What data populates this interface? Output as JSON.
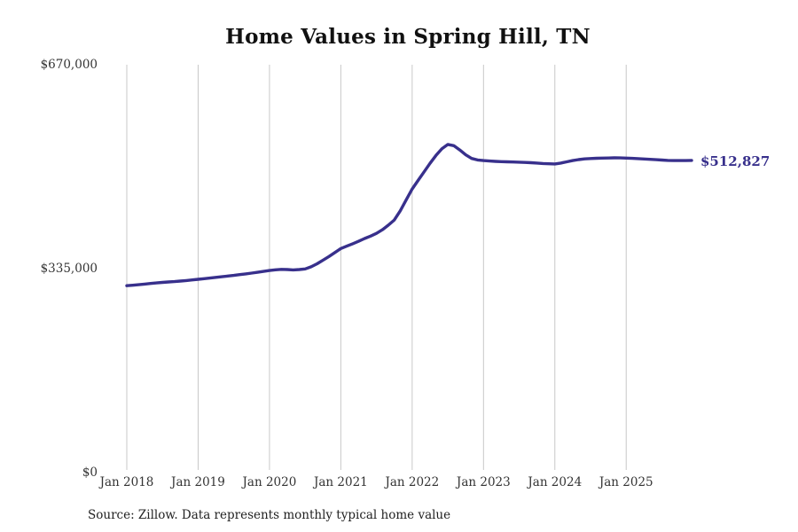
{
  "page": {
    "background": "#ffffff"
  },
  "chart_data": {
    "type": "line",
    "title": "Home Values in Spring Hill, TN",
    "source_note": "Source: Zillow. Data represents monthly typical home value",
    "series_name": "Monthly typical home value",
    "x_start_month": "Jan 2018",
    "x_end_month": "Dec 2025",
    "x_tick_labels": [
      "Jan 2018",
      "Jan 2019",
      "Jan 2020",
      "Jan 2021",
      "Jan 2022",
      "Jan 2023",
      "Jan 2024",
      "Jan 2025"
    ],
    "x_tick_month_indices": [
      0,
      12,
      24,
      36,
      48,
      60,
      72,
      84
    ],
    "y_ticks": [
      {
        "label": "$0",
        "value": 0
      },
      {
        "label": "$335,000",
        "value": 335000
      },
      {
        "label": "$670,000",
        "value": 670000
      }
    ],
    "ylim": [
      0,
      670000
    ],
    "grid": "vertical-only",
    "legend": "none",
    "end_label": "$512,827",
    "end_value": 512827,
    "line_color": "#38308c",
    "grid_color": "#c8c8c8",
    "text_color": "#333333",
    "values": [
      307000,
      307800,
      308700,
      309700,
      310700,
      311600,
      312400,
      313100,
      313800,
      314600,
      315500,
      316500,
      317500,
      318500,
      319600,
      320700,
      321800,
      322900,
      324000,
      325200,
      326400,
      327700,
      329000,
      330500,
      332000,
      333100,
      333800,
      333500,
      333000,
      333500,
      334500,
      338000,
      343000,
      349000,
      355000,
      361500,
      368000,
      372000,
      376000,
      380000,
      384500,
      388500,
      393000,
      399000,
      406500,
      415000,
      430000,
      448000,
      466000,
      480000,
      494000,
      508000,
      521000,
      532000,
      539000,
      537000,
      530000,
      522000,
      516000,
      513500,
      512500,
      511800,
      511200,
      510800,
      510500,
      510200,
      510000,
      509500,
      509000,
      508400,
      507800,
      507300,
      507000,
      508500,
      510500,
      512500,
      514200,
      515300,
      515900,
      516300,
      516600,
      516800,
      517000,
      516900,
      516600,
      516200,
      515700,
      515200,
      514600,
      514000,
      513400,
      512900,
      512600,
      512500,
      512600,
      512827
    ]
  }
}
